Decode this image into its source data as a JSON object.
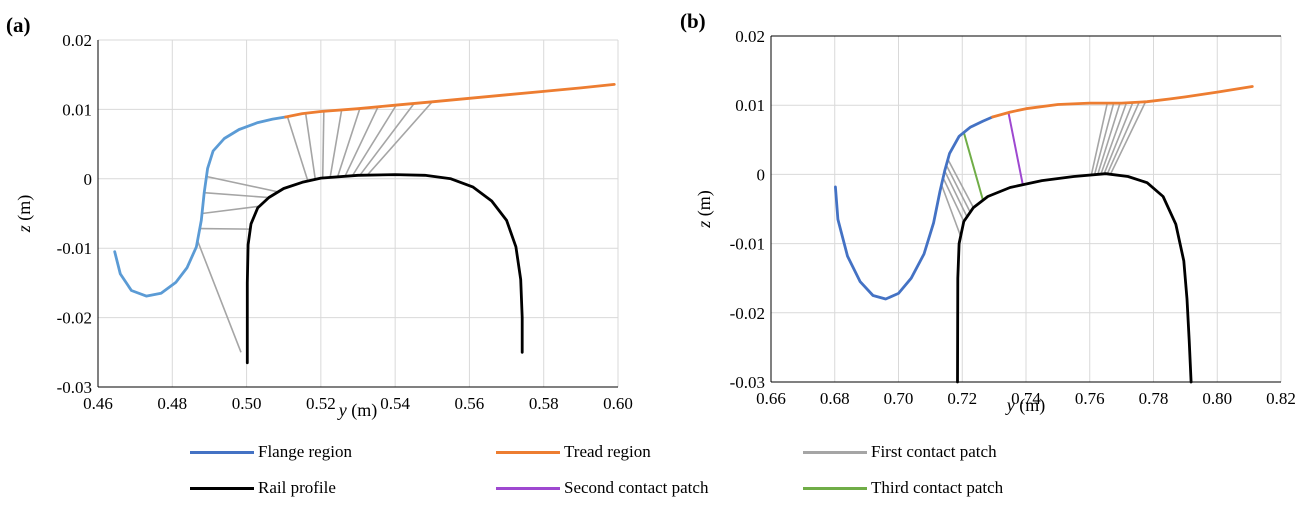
{
  "chart_data": [
    {
      "type": "line",
      "panel_label": "(a)",
      "xlabel_var": "y",
      "xlabel_unit": " (m)",
      "ylabel_var": "z",
      "ylabel_unit": " (m)",
      "xlim": [
        0.46,
        0.6
      ],
      "ylim": [
        -0.03,
        0.02
      ],
      "xticks": [
        0.46,
        0.48,
        0.5,
        0.52,
        0.54,
        0.56,
        0.58,
        0.6
      ],
      "yticks": [
        -0.03,
        -0.02,
        -0.01,
        0,
        0.01,
        0.02
      ],
      "xtick_labels": [
        "0.46",
        "0.48",
        "0.50",
        "0.52",
        "0.54",
        "0.56",
        "0.58",
        "0.60"
      ],
      "ytick_labels": [
        "-0.03",
        "-0.02",
        "-0.01",
        "0",
        "0.01",
        "0.02"
      ],
      "grid": true,
      "series": [
        {
          "name": "Flange region",
          "color": "#5b9bd5",
          "x": [
            0.4645,
            0.466,
            0.469,
            0.473,
            0.477,
            0.481,
            0.484,
            0.4865,
            0.4878,
            0.4886,
            0.4895,
            0.491,
            0.494,
            0.498,
            0.503,
            0.507,
            0.5105
          ],
          "y": [
            -0.0105,
            -0.0137,
            -0.0161,
            -0.0169,
            -0.0165,
            -0.0149,
            -0.0128,
            -0.0098,
            -0.006,
            -0.002,
            0.0015,
            0.004,
            0.0058,
            0.0071,
            0.0081,
            0.0086,
            0.0089
          ]
        },
        {
          "name": "Tread region",
          "color": "#ed7d31",
          "x": [
            0.5105,
            0.515,
            0.52,
            0.53,
            0.54,
            0.55,
            0.56,
            0.57,
            0.58,
            0.59,
            0.599
          ],
          "y": [
            0.0089,
            0.0094,
            0.0097,
            0.0101,
            0.0106,
            0.0111,
            0.0116,
            0.0121,
            0.0126,
            0.0131,
            0.0136
          ]
        },
        {
          "name": "Rail profile",
          "color": "#000000",
          "x": [
            0.5002,
            0.5002,
            0.5004,
            0.5012,
            0.503,
            0.506,
            0.51,
            0.515,
            0.52,
            0.53,
            0.54,
            0.548,
            0.555,
            0.561,
            0.566,
            0.57,
            0.5725,
            0.5738,
            0.5742,
            0.5742
          ],
          "y": [
            -0.0265,
            -0.015,
            -0.0095,
            -0.0065,
            -0.0042,
            -0.0027,
            -0.0014,
            -0.0005,
            0.0001,
            0.0005,
            0.0006,
            0.0005,
            0.0,
            -0.0012,
            -0.0032,
            -0.006,
            -0.0098,
            -0.0145,
            -0.02,
            -0.025
          ]
        }
      ],
      "contact_lines": [
        {
          "name": "First contact patch",
          "color": "#a5a5a5",
          "x1": [
            0.511,
            0.5159,
            0.5208,
            0.5256,
            0.5305,
            0.5354,
            0.5403,
            0.5451,
            0.55
          ],
          "x2": [
            0.5165,
            0.5185,
            0.5205,
            0.5225,
            0.5245,
            0.5265,
            0.5285,
            0.5305,
            0.5325
          ]
        },
        {
          "name": "First contact patch",
          "color": "#a5a5a5",
          "x1": [
            0.4868,
            0.4874,
            0.488,
            0.4886,
            0.4892
          ],
          "x2": [
            0.4985,
            0.501,
            0.5035,
            0.506,
            0.5085
          ]
        }
      ]
    },
    {
      "type": "line",
      "panel_label": "(b)",
      "xlabel_var": "y",
      "xlabel_unit": " (m)",
      "ylabel_var": "z",
      "ylabel_unit": " (m)",
      "xlim": [
        0.66,
        0.82
      ],
      "ylim": [
        -0.03,
        0.02
      ],
      "xticks": [
        0.66,
        0.68,
        0.7,
        0.72,
        0.74,
        0.76,
        0.78,
        0.8,
        0.82
      ],
      "yticks": [
        -0.03,
        -0.02,
        -0.01,
        0,
        0.01,
        0.02
      ],
      "xtick_labels": [
        "0.66",
        "0.68",
        "0.70",
        "0.72",
        "0.74",
        "0.76",
        "0.78",
        "0.80",
        "0.82"
      ],
      "ytick_labels": [
        "-0.03",
        "-0.02",
        "-0.01",
        "0",
        "0.01",
        "0.02"
      ],
      "grid": true,
      "series": [
        {
          "name": "Flange region",
          "color": "#4472c4",
          "x": [
            0.6802,
            0.681,
            0.684,
            0.688,
            0.692,
            0.696,
            0.7,
            0.704,
            0.708,
            0.711,
            0.713,
            0.7145,
            0.716,
            0.719,
            0.7225,
            0.7265,
            0.7295
          ],
          "y": [
            -0.0018,
            -0.0065,
            -0.0118,
            -0.0155,
            -0.0175,
            -0.018,
            -0.0172,
            -0.015,
            -0.0115,
            -0.007,
            -0.0025,
            0.0005,
            0.003,
            0.0055,
            0.0068,
            0.0077,
            0.0083
          ]
        },
        {
          "name": "Tread region",
          "color": "#ed7d31",
          "x": [
            0.7295,
            0.735,
            0.74,
            0.75,
            0.76,
            0.77,
            0.778,
            0.785,
            0.79,
            0.8,
            0.811
          ],
          "y": [
            0.0083,
            0.009,
            0.0095,
            0.0101,
            0.0103,
            0.0103,
            0.0105,
            0.0109,
            0.0112,
            0.0119,
            0.0127
          ]
        },
        {
          "name": "Rail profile",
          "color": "#000000",
          "x": [
            0.7185,
            0.7186,
            0.719,
            0.7205,
            0.7235,
            0.728,
            0.735,
            0.745,
            0.755,
            0.765,
            0.772,
            0.778,
            0.783,
            0.787,
            0.7895,
            0.7905,
            0.7912,
            0.7918
          ],
          "y": [
            -0.03,
            -0.015,
            -0.01,
            -0.0068,
            -0.0048,
            -0.0032,
            -0.0019,
            -0.0009,
            -0.0003,
            0.0001,
            -0.0003,
            -0.0012,
            -0.0032,
            -0.0072,
            -0.0125,
            -0.018,
            -0.024,
            -0.03
          ]
        }
      ],
      "contact_lines": [
        {
          "name": "First contact patch",
          "color": "#a5a5a5",
          "x1": [
            0.7655,
            0.7675,
            0.7695,
            0.7715,
            0.7735,
            0.7755,
            0.7775
          ],
          "x2": [
            0.7605,
            0.7615,
            0.7625,
            0.7635,
            0.7645,
            0.7655,
            0.7665
          ]
        },
        {
          "name": "First contact patch",
          "color": "#a5a5a5",
          "x1": [
            0.7135,
            0.714,
            0.7145,
            0.715,
            0.7155
          ],
          "x2": [
            0.7195,
            0.7205,
            0.7215,
            0.7225,
            0.7235
          ]
        },
        {
          "name": "Second contact patch",
          "color": "#9e48d0",
          "x1": [
            0.7345
          ],
          "x2": [
            0.739
          ]
        },
        {
          "name": "Third contact patch",
          "color": "#70ad47",
          "x1": [
            0.7205
          ],
          "x2": [
            0.7265
          ]
        }
      ]
    }
  ],
  "legend": {
    "items": [
      {
        "label": "Flange region",
        "color": "#4472c4"
      },
      {
        "label": "Tread region",
        "color": "#ed7d31"
      },
      {
        "label": "First contact patch",
        "color": "#a5a5a5"
      },
      {
        "label": "Rail profile",
        "color": "#000000"
      },
      {
        "label": "Second contact patch",
        "color": "#9e48d0"
      },
      {
        "label": "Third contact patch",
        "color": "#70ad47"
      }
    ]
  }
}
